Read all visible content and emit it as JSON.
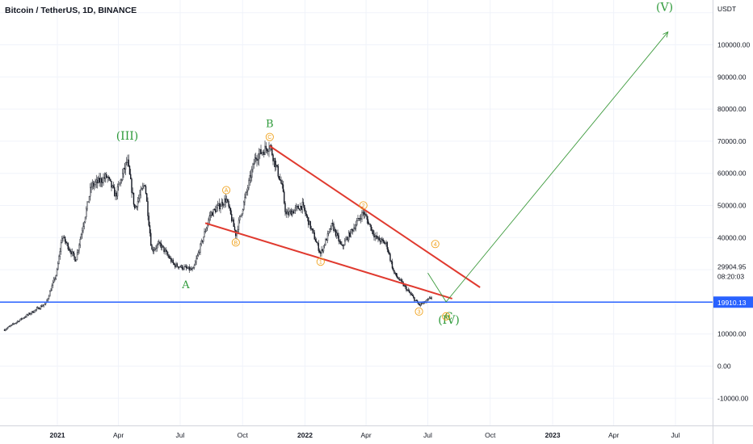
{
  "header": {
    "title": "Bitcoin / TetherUS, 1D, BINANCE"
  },
  "price_axis": {
    "currency": "USDT",
    "current_price": "29904.95",
    "countdown": "08:20:03",
    "support_level_label": "19910.13"
  },
  "colors": {
    "candle": "#131722",
    "wedge_lines": "#e03a2f",
    "projection": "#3c9a3c",
    "support_line": "#2962ff",
    "wave_green": "#2e9a3a",
    "wave_orange": "#f0a21d",
    "grid": "#f0f3fa"
  },
  "chart_data": {
    "type": "candlestick",
    "series_name": "Bitcoin / TetherUS",
    "ylim": [
      -17000,
      112000
    ],
    "y_ticks": [
      "-10000.00",
      "0.00",
      "10000.00",
      "40000.00",
      "50000.00",
      "60000.00",
      "70000.00",
      "80000.00",
      "90000.00",
      "100000.00"
    ],
    "y_tick_values": [
      -10000,
      0,
      10000,
      40000,
      50000,
      60000,
      70000,
      80000,
      90000,
      100000
    ],
    "x_ticks": [
      "2021",
      "Apr",
      "Jul",
      "Oct",
      "2022",
      "Apr",
      "Jul",
      "Oct",
      "2023",
      "Apr",
      "Jul"
    ],
    "x_tick_dates": [
      "2021-01-01",
      "2021-04-01",
      "2021-07-01",
      "2021-10-01",
      "2022-01-01",
      "2022-04-01",
      "2022-07-01",
      "2022-10-01",
      "2023-01-01",
      "2023-04-01",
      "2023-07-01"
    ],
    "price_path": [
      {
        "date": "2020-10-15",
        "close": 11300
      },
      {
        "date": "2020-11-15",
        "close": 15500
      },
      {
        "date": "2020-12-15",
        "close": 19500
      },
      {
        "date": "2020-12-31",
        "close": 29000
      },
      {
        "date": "2021-01-08",
        "close": 40500
      },
      {
        "date": "2021-01-28",
        "close": 33000
      },
      {
        "date": "2021-02-20",
        "close": 56000
      },
      {
        "date": "2021-03-15",
        "close": 59000
      },
      {
        "date": "2021-03-28",
        "close": 53000
      },
      {
        "date": "2021-04-14",
        "close": 64000
      },
      {
        "date": "2021-04-25",
        "close": 49000
      },
      {
        "date": "2021-05-10",
        "close": 57000
      },
      {
        "date": "2021-05-20",
        "close": 36000
      },
      {
        "date": "2021-06-01",
        "close": 38000
      },
      {
        "date": "2021-06-22",
        "close": 31500
      },
      {
        "date": "2021-07-20",
        "close": 29800
      },
      {
        "date": "2021-08-14",
        "close": 47000
      },
      {
        "date": "2021-09-07",
        "close": 52000
      },
      {
        "date": "2021-09-21",
        "close": 41000
      },
      {
        "date": "2021-10-20",
        "close": 65000
      },
      {
        "date": "2021-11-10",
        "close": 68800
      },
      {
        "date": "2021-11-28",
        "close": 56000
      },
      {
        "date": "2021-12-04",
        "close": 47000
      },
      {
        "date": "2021-12-28",
        "close": 50000
      },
      {
        "date": "2022-01-24",
        "close": 35000
      },
      {
        "date": "2022-02-10",
        "close": 44000
      },
      {
        "date": "2022-02-24",
        "close": 37000
      },
      {
        "date": "2022-03-28",
        "close": 48000
      },
      {
        "date": "2022-04-15",
        "close": 40000
      },
      {
        "date": "2022-05-01",
        "close": 38000
      },
      {
        "date": "2022-05-12",
        "close": 29000
      },
      {
        "date": "2022-06-18",
        "close": 19000
      },
      {
        "date": "2022-06-28",
        "close": 20000
      },
      {
        "date": "2022-07-07",
        "close": 21500
      }
    ],
    "annotations": {
      "wave_degree": [
        {
          "label": "(III)",
          "date": "2021-04-14",
          "price": 64000
        },
        {
          "label": "(IV)",
          "date": "2022-08-01",
          "price": 19000
        },
        {
          "label": "(V)",
          "date": "2023-06-15",
          "price": 106000
        }
      ],
      "abc": [
        {
          "label": "A",
          "date": "2021-07-20",
          "price": 29800
        },
        {
          "label": "B",
          "date": "2021-11-10",
          "price": 68800
        },
        {
          "label": "C",
          "date": "2022-08-01",
          "price": 19000
        }
      ],
      "circled": [
        {
          "label": "A",
          "date": "2021-09-07",
          "price": 52000
        },
        {
          "label": "B",
          "date": "2021-09-21",
          "price": 41000
        },
        {
          "label": "C",
          "date": "2021-11-10",
          "price": 68800
        },
        {
          "label": "1",
          "date": "2022-01-24",
          "price": 35000
        },
        {
          "label": "2",
          "date": "2022-03-28",
          "price": 48000
        },
        {
          "label": "3",
          "date": "2022-06-18",
          "price": 19000
        },
        {
          "label": "4",
          "date": "2022-07-12",
          "price": 38000
        },
        {
          "label": "5",
          "date": "2022-07-28",
          "price": 17000
        }
      ]
    },
    "trendlines": [
      {
        "name": "upper",
        "from": {
          "date": "2021-11-10",
          "price": 68500
        },
        "to": {
          "date": "2022-09-16",
          "price": 24500
        }
      },
      {
        "name": "lower",
        "from": {
          "date": "2021-08-07",
          "price": 44500
        },
        "to": {
          "date": "2022-08-06",
          "price": 21000
        }
      }
    ],
    "projection": [
      {
        "date": "2022-07-01",
        "price": 29000
      },
      {
        "date": "2022-07-28",
        "price": 20000
      },
      {
        "date": "2023-06-20",
        "price": 104000
      }
    ],
    "support": {
      "price": 19910.13
    }
  }
}
